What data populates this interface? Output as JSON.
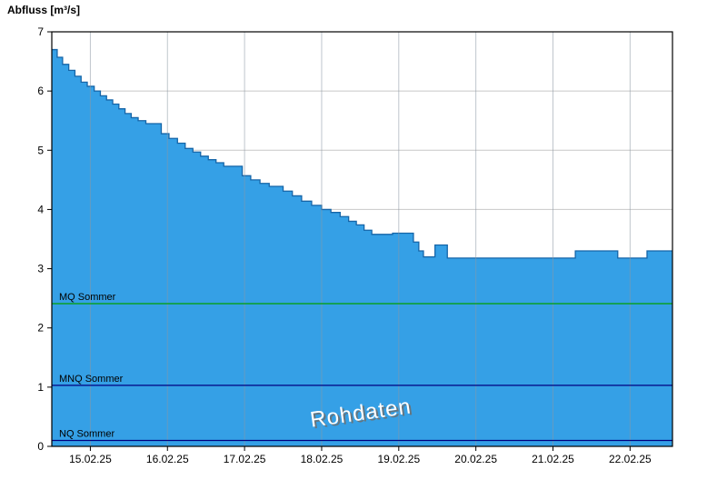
{
  "chart_data": {
    "type": "area",
    "step": true,
    "y_axis_title": "Abfluss [m³/s]",
    "watermark": "Rohdaten",
    "ylim": [
      0,
      7
    ],
    "yticks": [
      0,
      1,
      2,
      3,
      4,
      5,
      6,
      7
    ],
    "x_total_days": 8.05,
    "xticks": [
      {
        "pos": 0.5,
        "label": "15.02.25"
      },
      {
        "pos": 1.5,
        "label": "16.02.25"
      },
      {
        "pos": 2.5,
        "label": "17.02.25"
      },
      {
        "pos": 3.5,
        "label": "18.02.25"
      },
      {
        "pos": 4.5,
        "label": "19.02.25"
      },
      {
        "pos": 5.5,
        "label": "20.02.25"
      },
      {
        "pos": 6.5,
        "label": "21.02.25"
      },
      {
        "pos": 7.5,
        "label": "22.02.25"
      }
    ],
    "series": [
      {
        "name": "Abfluss Rohdaten",
        "fill": "#35A0E6",
        "stroke": "#1565A8",
        "points_day_value": [
          [
            0.0,
            6.7
          ],
          [
            0.07,
            6.57
          ],
          [
            0.14,
            6.45
          ],
          [
            0.22,
            6.35
          ],
          [
            0.3,
            6.25
          ],
          [
            0.38,
            6.15
          ],
          [
            0.46,
            6.08
          ],
          [
            0.55,
            6.0
          ],
          [
            0.63,
            5.92
          ],
          [
            0.71,
            5.85
          ],
          [
            0.79,
            5.78
          ],
          [
            0.87,
            5.7
          ],
          [
            0.95,
            5.62
          ],
          [
            1.03,
            5.55
          ],
          [
            1.12,
            5.5
          ],
          [
            1.22,
            5.45
          ],
          [
            1.42,
            5.28
          ],
          [
            1.52,
            5.2
          ],
          [
            1.63,
            5.12
          ],
          [
            1.73,
            5.03
          ],
          [
            1.83,
            4.97
          ],
          [
            1.93,
            4.9
          ],
          [
            2.03,
            4.84
          ],
          [
            2.13,
            4.79
          ],
          [
            2.23,
            4.73
          ],
          [
            2.47,
            4.57
          ],
          [
            2.58,
            4.5
          ],
          [
            2.7,
            4.44
          ],
          [
            2.82,
            4.39
          ],
          [
            3.0,
            4.31
          ],
          [
            3.12,
            4.23
          ],
          [
            3.24,
            4.14
          ],
          [
            3.37,
            4.07
          ],
          [
            3.5,
            4.0
          ],
          [
            3.62,
            3.95
          ],
          [
            3.74,
            3.88
          ],
          [
            3.85,
            3.8
          ],
          [
            3.95,
            3.74
          ],
          [
            4.05,
            3.65
          ],
          [
            4.15,
            3.58
          ],
          [
            4.42,
            3.6
          ],
          [
            4.69,
            3.45
          ],
          [
            4.76,
            3.3
          ],
          [
            4.82,
            3.2
          ],
          [
            4.97,
            3.4
          ],
          [
            5.13,
            3.18
          ],
          [
            6.79,
            3.3
          ],
          [
            7.34,
            3.18
          ],
          [
            7.72,
            3.3
          ]
        ]
      }
    ],
    "reference_lines": [
      {
        "label": "MQ Sommer",
        "value": 2.41,
        "color": "#00A000"
      },
      {
        "label": "MNQ Sommer",
        "value": 1.03,
        "color": "#000080"
      },
      {
        "label": "NQ Sommer",
        "value": 0.1,
        "color": "#000080"
      }
    ],
    "colors": {
      "grid": "#c8c8c8",
      "grid_over_area": "#8c98a4",
      "frame": "#000000",
      "tick_text": "#000000",
      "watermark_fill": "#ffffff",
      "watermark_shadow": "#6e6e6e",
      "plot_background": "#ffffff"
    }
  }
}
